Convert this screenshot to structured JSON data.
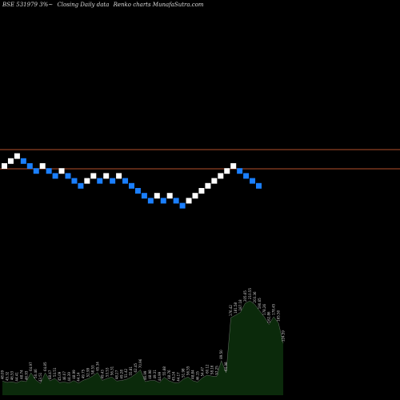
{
  "header": {
    "symbol": "BSE 531979 3%~",
    "subtitle": "Closing Daily data",
    "source": "Renko charts MunafaSutra.com"
  },
  "colors": {
    "background": "#000000",
    "up_brick": "#ffffff",
    "down_brick": "#1a7fff",
    "reference_line": "#b5502c",
    "volume_fill": "#0b2a0b",
    "volume_outline": "#ffffff",
    "volume_label": "#cccccc"
  },
  "chart_data": [
    {
      "type": "renko",
      "brick_size_percent": 3,
      "horizontal_reference_levels": [
        "upper",
        "lower"
      ],
      "bricks": [
        "up",
        "up",
        "up",
        "down",
        "down",
        "down",
        "up",
        "down",
        "down",
        "up",
        "down",
        "down",
        "down",
        "up",
        "up",
        "down",
        "up",
        "down",
        "up",
        "down",
        "down",
        "down",
        "down",
        "down",
        "up",
        "down",
        "up",
        "down",
        "down",
        "up",
        "up",
        "up",
        "up",
        "up",
        "up",
        "up",
        "up",
        "down",
        "down",
        "down",
        "down"
      ],
      "grid": false
    },
    {
      "type": "area",
      "role": "volume",
      "labels": [
        "48.09",
        "45.32",
        "46.53",
        "44.41",
        "48.74",
        "46.93",
        "64.97",
        "50.46",
        "43.51",
        "64.85",
        "48.47",
        "53.51",
        "45.09",
        "46.07",
        "44.39",
        "48.99",
        "44.14",
        "49.75",
        "52.99",
        "58.53",
        "65.34",
        "49.43",
        "53.53",
        "56.31",
        "48.27",
        "49.28",
        "51.42",
        "55.81",
        "62.45",
        "70.96",
        "46.99",
        "48.98",
        "49.31",
        "44.99",
        "55.88",
        "48.76",
        "45.24",
        "44.17",
        "51.98",
        "56.55",
        "48.84",
        "46.15",
        "54.47",
        "60.12",
        "58.16",
        "57.25",
        "89.50",
        "64.98",
        "176.42",
        "181.58",
        "187.18",
        "205.65",
        "210.55",
        "203.36",
        "190.65",
        "178.26",
        "162.86",
        "178.45",
        "165.50",
        "124.59"
      ],
      "values": [
        48.09,
        45.32,
        46.53,
        44.41,
        48.74,
        46.93,
        64.97,
        50.46,
        43.51,
        64.85,
        48.47,
        53.51,
        45.09,
        46.07,
        44.39,
        48.99,
        44.14,
        49.75,
        52.99,
        58.53,
        65.34,
        49.43,
        53.53,
        56.31,
        48.27,
        49.28,
        51.42,
        55.81,
        62.45,
        70.96,
        46.99,
        48.98,
        49.31,
        44.99,
        55.88,
        48.76,
        45.24,
        44.17,
        51.98,
        56.55,
        48.84,
        46.15,
        54.47,
        60.12,
        58.16,
        57.25,
        89.5,
        64.98,
        176.42,
        181.58,
        187.18,
        205.65,
        210.55,
        203.36,
        190.65,
        178.26,
        162.86,
        178.45,
        165.5,
        124.59
      ]
    }
  ]
}
